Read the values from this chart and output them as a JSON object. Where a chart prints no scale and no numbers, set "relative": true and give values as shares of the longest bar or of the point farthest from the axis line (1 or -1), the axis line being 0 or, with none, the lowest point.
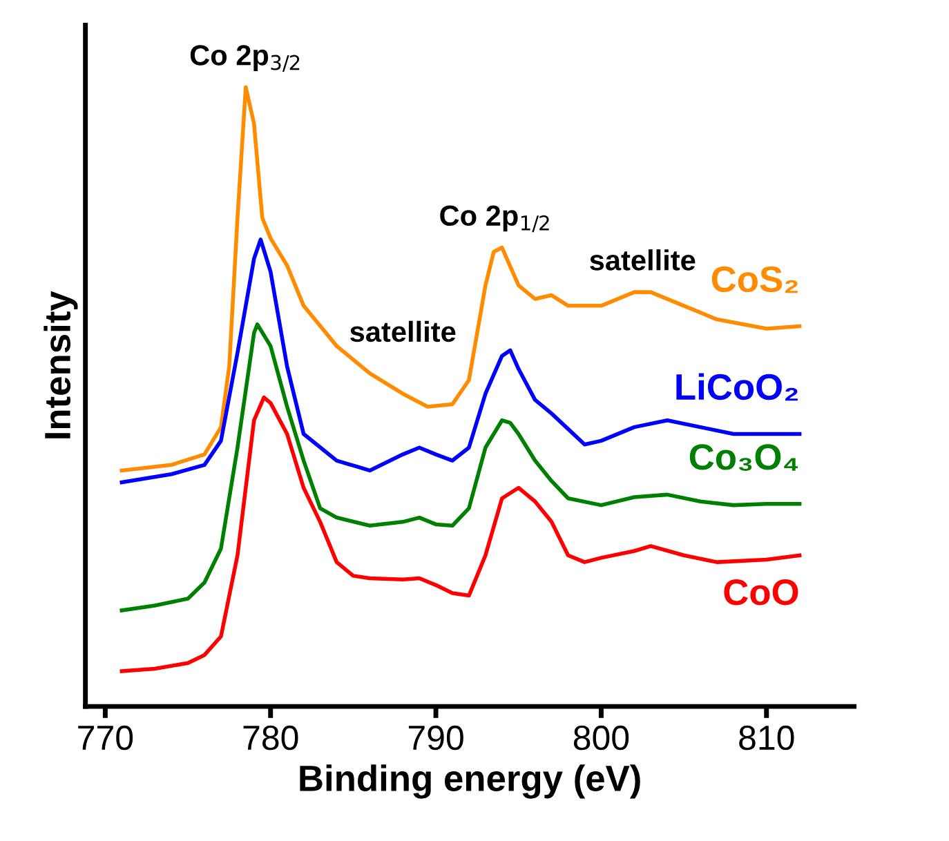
{
  "chart_data": {
    "type": "line",
    "relative": true,
    "xlabel": "Binding energy (eV)",
    "ylabel": "Intensity",
    "xlim": [
      768.8,
      815.3
    ],
    "xticks": [
      770,
      780,
      790,
      800,
      810
    ],
    "grid": false,
    "legend": false,
    "marker": "none",
    "line_style": "solid",
    "annotations": [
      {
        "text": "Co 2p$_{3/2}$",
        "x": 778.5,
        "y": 1.0
      },
      {
        "text": "Co 2p$_{1/2}$",
        "x": 793.6,
        "y": 0.741
      },
      {
        "text": "satellite",
        "x": 788,
        "y": 0.505
      },
      {
        "text": "satellite",
        "x": 802.5,
        "y": 0.67
      }
    ],
    "series": [
      {
        "name": "CoS₂",
        "color": "#ff8c00",
        "x": [
          771,
          774,
          776,
          777,
          777.5,
          778,
          778.5,
          779,
          779.5,
          780,
          781,
          782,
          784,
          786,
          788,
          789.5,
          791,
          792,
          793,
          793.5,
          794,
          795,
          796,
          797,
          798,
          800,
          802,
          803,
          805,
          807,
          810,
          812
        ],
        "values": [
          0.381,
          0.39,
          0.407,
          0.451,
          0.549,
          0.789,
          1.0,
          0.941,
          0.789,
          0.756,
          0.712,
          0.647,
          0.582,
          0.538,
          0.505,
          0.484,
          0.488,
          0.527,
          0.68,
          0.734,
          0.741,
          0.68,
          0.658,
          0.664,
          0.647,
          0.647,
          0.669,
          0.669,
          0.647,
          0.625,
          0.61,
          0.614
        ]
      },
      {
        "name": "LiCoO₂",
        "color": "#0000ff",
        "x": [
          771,
          774,
          776,
          777,
          778,
          779,
          779.4,
          780,
          781,
          782,
          784,
          786,
          788,
          789,
          790,
          791,
          792,
          793,
          794,
          794.5,
          795,
          796,
          797,
          799,
          800,
          802,
          804,
          806,
          808,
          810,
          812
        ],
        "values": [
          0.362,
          0.375,
          0.39,
          0.429,
          0.571,
          0.723,
          0.754,
          0.702,
          0.549,
          0.44,
          0.397,
          0.381,
          0.407,
          0.418,
          0.407,
          0.397,
          0.418,
          0.505,
          0.566,
          0.575,
          0.545,
          0.495,
          0.473,
          0.423,
          0.429,
          0.451,
          0.462,
          0.451,
          0.44,
          0.44,
          0.44
        ]
      },
      {
        "name": "Co₃O₄",
        "color": "#008000",
        "x": [
          771,
          773,
          775,
          776,
          777,
          778,
          779,
          779.2,
          780,
          781,
          782,
          783,
          784,
          786,
          788,
          789,
          790,
          791,
          792,
          793,
          794,
          794.5,
          795,
          796,
          797,
          798,
          800,
          802,
          804,
          806,
          808,
          810,
          812
        ],
        "values": [
          0.155,
          0.163,
          0.174,
          0.2,
          0.255,
          0.418,
          0.603,
          0.617,
          0.582,
          0.484,
          0.397,
          0.32,
          0.305,
          0.292,
          0.298,
          0.305,
          0.294,
          0.292,
          0.32,
          0.418,
          0.462,
          0.458,
          0.44,
          0.397,
          0.364,
          0.336,
          0.325,
          0.338,
          0.342,
          0.331,
          0.325,
          0.327,
          0.327
        ]
      },
      {
        "name": "CoO",
        "color": "#ff0000",
        "x": [
          771,
          773,
          775,
          776,
          777,
          778,
          779,
          779.6,
          780,
          781,
          782,
          783,
          784,
          785,
          786,
          788,
          789,
          790,
          791,
          792,
          793,
          794,
          795,
          796,
          797,
          798,
          799,
          800,
          802,
          803,
          805,
          807,
          810,
          812
        ],
        "values": [
          0.057,
          0.061,
          0.07,
          0.083,
          0.113,
          0.244,
          0.462,
          0.499,
          0.49,
          0.44,
          0.353,
          0.298,
          0.233,
          0.211,
          0.207,
          0.205,
          0.207,
          0.196,
          0.183,
          0.179,
          0.244,
          0.336,
          0.353,
          0.331,
          0.298,
          0.244,
          0.233,
          0.24,
          0.251,
          0.259,
          0.244,
          0.233,
          0.237,
          0.244
        ]
      }
    ]
  }
}
